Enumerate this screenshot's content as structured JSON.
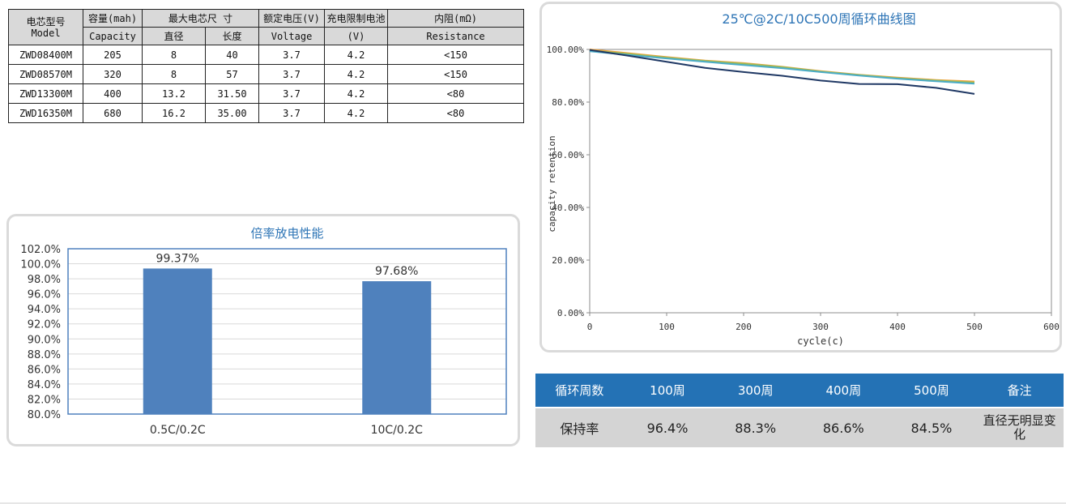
{
  "spec_table": {
    "headers": {
      "model": "电芯型号 Model",
      "capacity_cn": "容量(mah)",
      "capacity_en": "Capacity",
      "max_size": "最大电芯尺 寸",
      "diameter": "直径",
      "length": "长度",
      "voltage_cn": "额定电压(V)",
      "voltage_en": "Voltage",
      "charge_cn": "充电限制电池",
      "charge_unit": "(V)",
      "resistance_cn": "内阻(mΩ)",
      "resistance_en": "Resistance"
    },
    "rows": [
      {
        "model": "ZWD08400M",
        "capacity": "205",
        "diameter": "8",
        "length": "40",
        "voltage": "3.7",
        "charge": "4.2",
        "resistance": "<150"
      },
      {
        "model": "ZWD08570M",
        "capacity": "320",
        "diameter": "8",
        "length": "57",
        "voltage": "3.7",
        "charge": "4.2",
        "resistance": "<150"
      },
      {
        "model": "ZWD13300M",
        "capacity": "400",
        "diameter": "13.2",
        "length": "31.50",
        "voltage": "3.7",
        "charge": "4.2",
        "resistance": "<80"
      },
      {
        "model": "ZWD16350M",
        "capacity": "680",
        "diameter": "16.2",
        "length": "35.00",
        "voltage": "3.7",
        "charge": "4.2",
        "resistance": "<80"
      }
    ]
  },
  "chart_data": [
    {
      "type": "bar",
      "title": "倍率放电性能",
      "categories": [
        "0.5C/0.2C",
        "10C/0.2C"
      ],
      "values": [
        99.37,
        97.68
      ],
      "data_labels": [
        "99.37%",
        "97.68%"
      ],
      "ylim": [
        80,
        102
      ],
      "yticks": [
        "80.0%",
        "82.0%",
        "84.0%",
        "86.0%",
        "88.0%",
        "90.0%",
        "92.0%",
        "94.0%",
        "96.0%",
        "98.0%",
        "100.0%",
        "102.0%"
      ],
      "ytick_values": [
        80,
        82,
        84,
        86,
        88,
        90,
        92,
        94,
        96,
        98,
        100,
        102
      ],
      "grid": true,
      "colors": {
        "bar": "#4f81bd",
        "frame": "#4f81bd",
        "grid": "#d9d9d9",
        "title": "#2e75b6"
      }
    },
    {
      "type": "line",
      "title": "25℃@2C/10C500周循环曲线图",
      "xlabel": "cycle(c)",
      "ylabel": "capacity retention",
      "xlim": [
        0,
        600
      ],
      "ylim": [
        0,
        100
      ],
      "xticks": [
        "0",
        "100",
        "200",
        "300",
        "400",
        "500",
        "600"
      ],
      "xtick_values": [
        0,
        100,
        200,
        300,
        400,
        500,
        600
      ],
      "yticks": [
        "0.00%",
        "20.00%",
        "40.00%",
        "60.00%",
        "80.00%",
        "100.00%"
      ],
      "ytick_values": [
        0,
        20,
        40,
        60,
        80,
        100
      ],
      "grid": false,
      "series": [
        {
          "color": "#f2a23a",
          "x": [
            0,
            50,
            100,
            150,
            200,
            250,
            300,
            350,
            400,
            450,
            500
          ],
          "y": [
            100,
            98.6,
            97.1,
            95.8,
            94.8,
            93.4,
            91.8,
            90.4,
            89.3,
            88.4,
            87.8
          ]
        },
        {
          "color": "#9bbb59",
          "x": [
            0,
            50,
            100,
            150,
            200,
            250,
            300,
            350,
            400,
            450,
            500
          ],
          "y": [
            99.6,
            98.3,
            96.9,
            95.6,
            94.6,
            93.3,
            91.6,
            90.3,
            89.1,
            88.2,
            87.4
          ]
        },
        {
          "color": "#4bacc6",
          "x": [
            0,
            50,
            100,
            150,
            200,
            250,
            300,
            350,
            400,
            450,
            500
          ],
          "y": [
            99.3,
            97.9,
            96.6,
            95.3,
            94.1,
            92.9,
            91.4,
            90.1,
            88.9,
            87.9,
            87.0
          ]
        },
        {
          "color": "#1f3864",
          "x": [
            0,
            50,
            100,
            150,
            200,
            250,
            300,
            350,
            400,
            450,
            500
          ],
          "y": [
            99.8,
            97.6,
            95.3,
            93.0,
            91.4,
            90.0,
            88.2,
            86.9,
            86.8,
            85.4,
            83.1
          ]
        }
      ],
      "colors": {
        "title": "#2e75b6",
        "axis": "#8c8c8c"
      }
    }
  ],
  "retention_table": {
    "headers": [
      "循环周数",
      "100周",
      "300周",
      "400周",
      "500周",
      "备注"
    ],
    "row": [
      "保持率",
      "96.4%",
      "88.3%",
      "86.6%",
      "84.5%",
      "直径无明显变化"
    ],
    "colors": {
      "header_bg": "#2472b5",
      "row_bg": "#d4d4d4"
    }
  }
}
